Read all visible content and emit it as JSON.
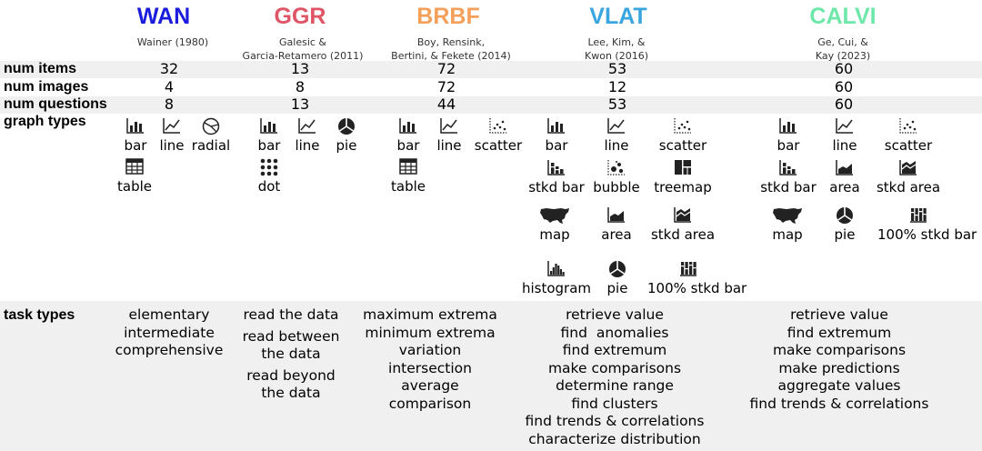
{
  "colors": {
    "WAN": "#1c1cdc",
    "GGR": "#e05565",
    "BRBF": "#f5a05a",
    "VLAT": "#3aa6e0",
    "CALVI": "#6de8a8",
    "row_band": "#f0f0f0",
    "icon": "#222222"
  },
  "row_labels": {
    "num_items": "num items",
    "num_images": "num images",
    "num_questions": "num questions",
    "graph_types": "graph types",
    "task_types": "task types"
  },
  "assessments": [
    {
      "name": "WAN",
      "citation": [
        "Wainer (1980)"
      ],
      "num_items": "32",
      "num_images": "4",
      "num_questions": "8",
      "graph_types": [
        {
          "label": "bar",
          "icon": "bar-chart-icon"
        },
        {
          "label": "line",
          "icon": "line-chart-icon"
        },
        {
          "label": "radial",
          "icon": "radial-chart-icon"
        },
        {
          "label": "table",
          "icon": "table-icon"
        }
      ],
      "task_types": [
        "elementary",
        "intermediate",
        "comprehensive"
      ]
    },
    {
      "name": "GGR",
      "citation": [
        "Galesic &",
        "Garcia-Retamero (2011)"
      ],
      "num_items": "13",
      "num_images": "8",
      "num_questions": "13",
      "graph_types": [
        {
          "label": "bar",
          "icon": "bar-chart-icon"
        },
        {
          "label": "line",
          "icon": "line-chart-icon"
        },
        {
          "label": "pie",
          "icon": "pie-chart-icon"
        },
        {
          "label": "dot",
          "icon": "dot-matrix-icon"
        }
      ],
      "task_types": [
        "read the data",
        "read between",
        "the data",
        "read beyond",
        "the data"
      ]
    },
    {
      "name": "BRBF",
      "citation": [
        "Boy, Rensink,",
        "Bertini, & Fekete (2014)"
      ],
      "num_items": "72",
      "num_images": "72",
      "num_questions": "44",
      "graph_types": [
        {
          "label": "bar",
          "icon": "bar-chart-icon"
        },
        {
          "label": "line",
          "icon": "line-chart-icon"
        },
        {
          "label": "scatter",
          "icon": "scatter-plot-icon"
        },
        {
          "label": "table",
          "icon": "table-icon"
        }
      ],
      "task_types": [
        "maximum extrema",
        "minimum extrema",
        "variation",
        "intersection",
        "average",
        "comparison"
      ]
    },
    {
      "name": "VLAT",
      "citation": [
        "Lee, Kim, &",
        "Kwon (2016)"
      ],
      "num_items": "53",
      "num_images": "12",
      "num_questions": "53",
      "graph_types": [
        {
          "label": "bar",
          "icon": "bar-chart-icon"
        },
        {
          "label": "line",
          "icon": "line-chart-icon"
        },
        {
          "label": "scatter",
          "icon": "scatter-plot-icon"
        },
        {
          "label": "stkd bar",
          "icon": "stacked-bar-icon"
        },
        {
          "label": "bubble",
          "icon": "bubble-chart-icon"
        },
        {
          "label": "treemap",
          "icon": "treemap-icon"
        },
        {
          "label": "map",
          "icon": "usa-map-icon"
        },
        {
          "label": "area",
          "icon": "area-chart-icon"
        },
        {
          "label": "stkd area",
          "icon": "stacked-area-icon"
        },
        {
          "label": "histogram",
          "icon": "histogram-icon"
        },
        {
          "label": "pie",
          "icon": "pie-chart-icon"
        },
        {
          "label": "100% stkd bar",
          "icon": "percent-stacked-bar-icon"
        }
      ],
      "task_types": [
        "retrieve value",
        "find  anomalies",
        "find extremum",
        "make comparisons",
        "determine range",
        "find clusters",
        "find trends & correlations",
        "characterize distribution"
      ]
    },
    {
      "name": "CALVI",
      "citation": [
        "Ge, Cui, &",
        "Kay (2023)"
      ],
      "num_items": "60",
      "num_images": "60",
      "num_questions": "60",
      "graph_types": [
        {
          "label": "bar",
          "icon": "bar-chart-icon"
        },
        {
          "label": "line",
          "icon": "line-chart-icon"
        },
        {
          "label": "scatter",
          "icon": "scatter-plot-icon"
        },
        {
          "label": "stkd bar",
          "icon": "stacked-bar-icon"
        },
        {
          "label": "area",
          "icon": "area-chart-icon"
        },
        {
          "label": "stkd area",
          "icon": "stacked-area-icon"
        },
        {
          "label": "map",
          "icon": "usa-map-icon"
        },
        {
          "label": "pie",
          "icon": "pie-chart-icon"
        },
        {
          "label": "100% stkd bar",
          "icon": "percent-stacked-bar-icon"
        }
      ],
      "task_types": [
        "retrieve value",
        "find extremum",
        "make comparisons",
        "make predictions",
        "aggregate values",
        "find trends & correlations"
      ]
    }
  ]
}
